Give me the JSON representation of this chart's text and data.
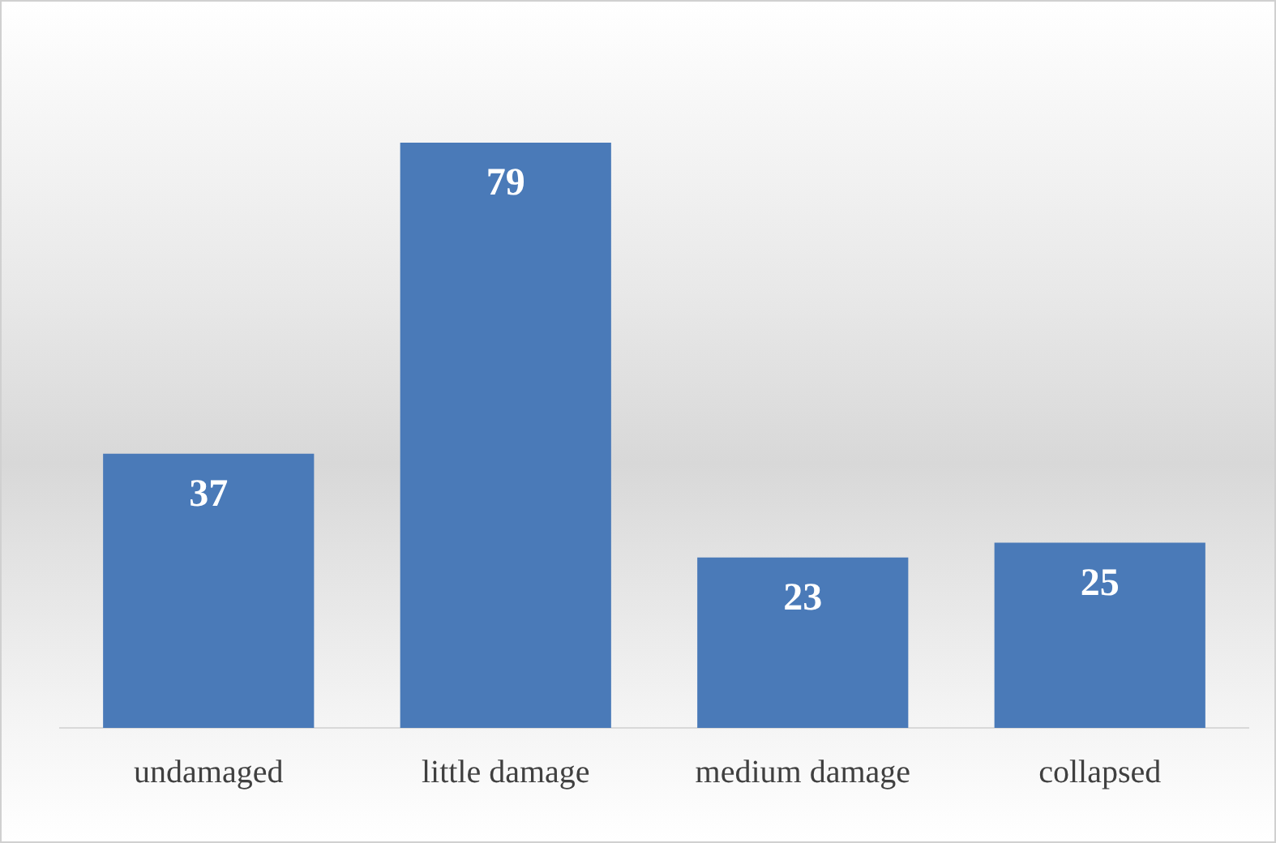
{
  "chart_data": {
    "type": "bar",
    "categories": [
      "undamaged",
      "little damage",
      "medium damage",
      "collapsed"
    ],
    "values": [
      37,
      79,
      23,
      25
    ],
    "color": "#4a7ab8",
    "data_labels": true,
    "grid": false,
    "legend": false
  }
}
